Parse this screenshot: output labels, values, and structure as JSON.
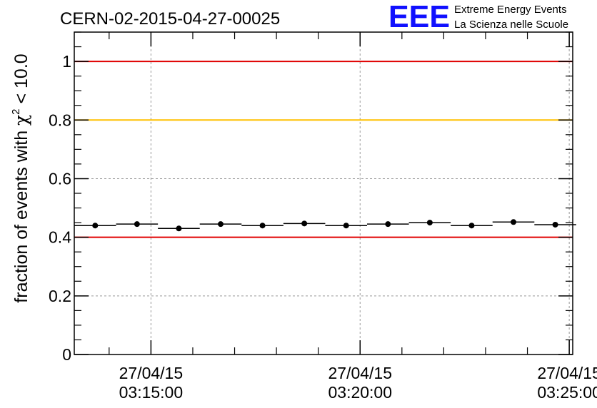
{
  "chart_data": {
    "type": "scatter",
    "title": "CERN-02-2015-04-27-00025",
    "ylabel": {
      "prefix": "fraction of events with ",
      "chi": "χ",
      "sup": "2",
      "suffix": " < 10.0"
    },
    "xlabel": "",
    "ylim": [
      0,
      1.1
    ],
    "y_ticks": [
      "0",
      "0.2",
      "0.4",
      "0.6",
      "0.8",
      "1"
    ],
    "x_ticks": [
      {
        "date": "27/04/15",
        "time": "03:15:00"
      },
      {
        "date": "27/04/15",
        "time": "03:20:00"
      },
      {
        "date": "27/04/15",
        "time": "03:25:00"
      }
    ],
    "xlim": [
      "2015-04-27T03:13:10",
      "2015-04-27T03:25:05"
    ],
    "grid": true,
    "reference_lines": [
      {
        "y": 1.0,
        "color": "#e00000"
      },
      {
        "y": 0.8,
        "color": "#ffc000"
      },
      {
        "y": 0.4,
        "color": "#e00000"
      }
    ],
    "points": [
      {
        "x": "2015-04-27T03:13:40",
        "xerr_s": 30,
        "y": 0.44
      },
      {
        "x": "2015-04-27T03:14:40",
        "xerr_s": 30,
        "y": 0.445
      },
      {
        "x": "2015-04-27T03:15:40",
        "xerr_s": 30,
        "y": 0.43
      },
      {
        "x": "2015-04-27T03:16:40",
        "xerr_s": 30,
        "y": 0.445
      },
      {
        "x": "2015-04-27T03:17:40",
        "xerr_s": 30,
        "y": 0.44
      },
      {
        "x": "2015-04-27T03:18:40",
        "xerr_s": 30,
        "y": 0.447
      },
      {
        "x": "2015-04-27T03:19:40",
        "xerr_s": 30,
        "y": 0.44
      },
      {
        "x": "2015-04-27T03:20:40",
        "xerr_s": 30,
        "y": 0.445
      },
      {
        "x": "2015-04-27T03:21:40",
        "xerr_s": 30,
        "y": 0.45
      },
      {
        "x": "2015-04-27T03:22:40",
        "xerr_s": 30,
        "y": 0.44
      },
      {
        "x": "2015-04-27T03:23:40",
        "xerr_s": 30,
        "y": 0.452
      },
      {
        "x": "2015-04-27T03:24:40",
        "xerr_s": 30,
        "y": 0.443
      }
    ]
  },
  "logo": {
    "mark": "EEE",
    "line1": "Extreme Energy Events",
    "line2": "La Scienza nelle Scuole",
    "color": "#1010ff"
  }
}
